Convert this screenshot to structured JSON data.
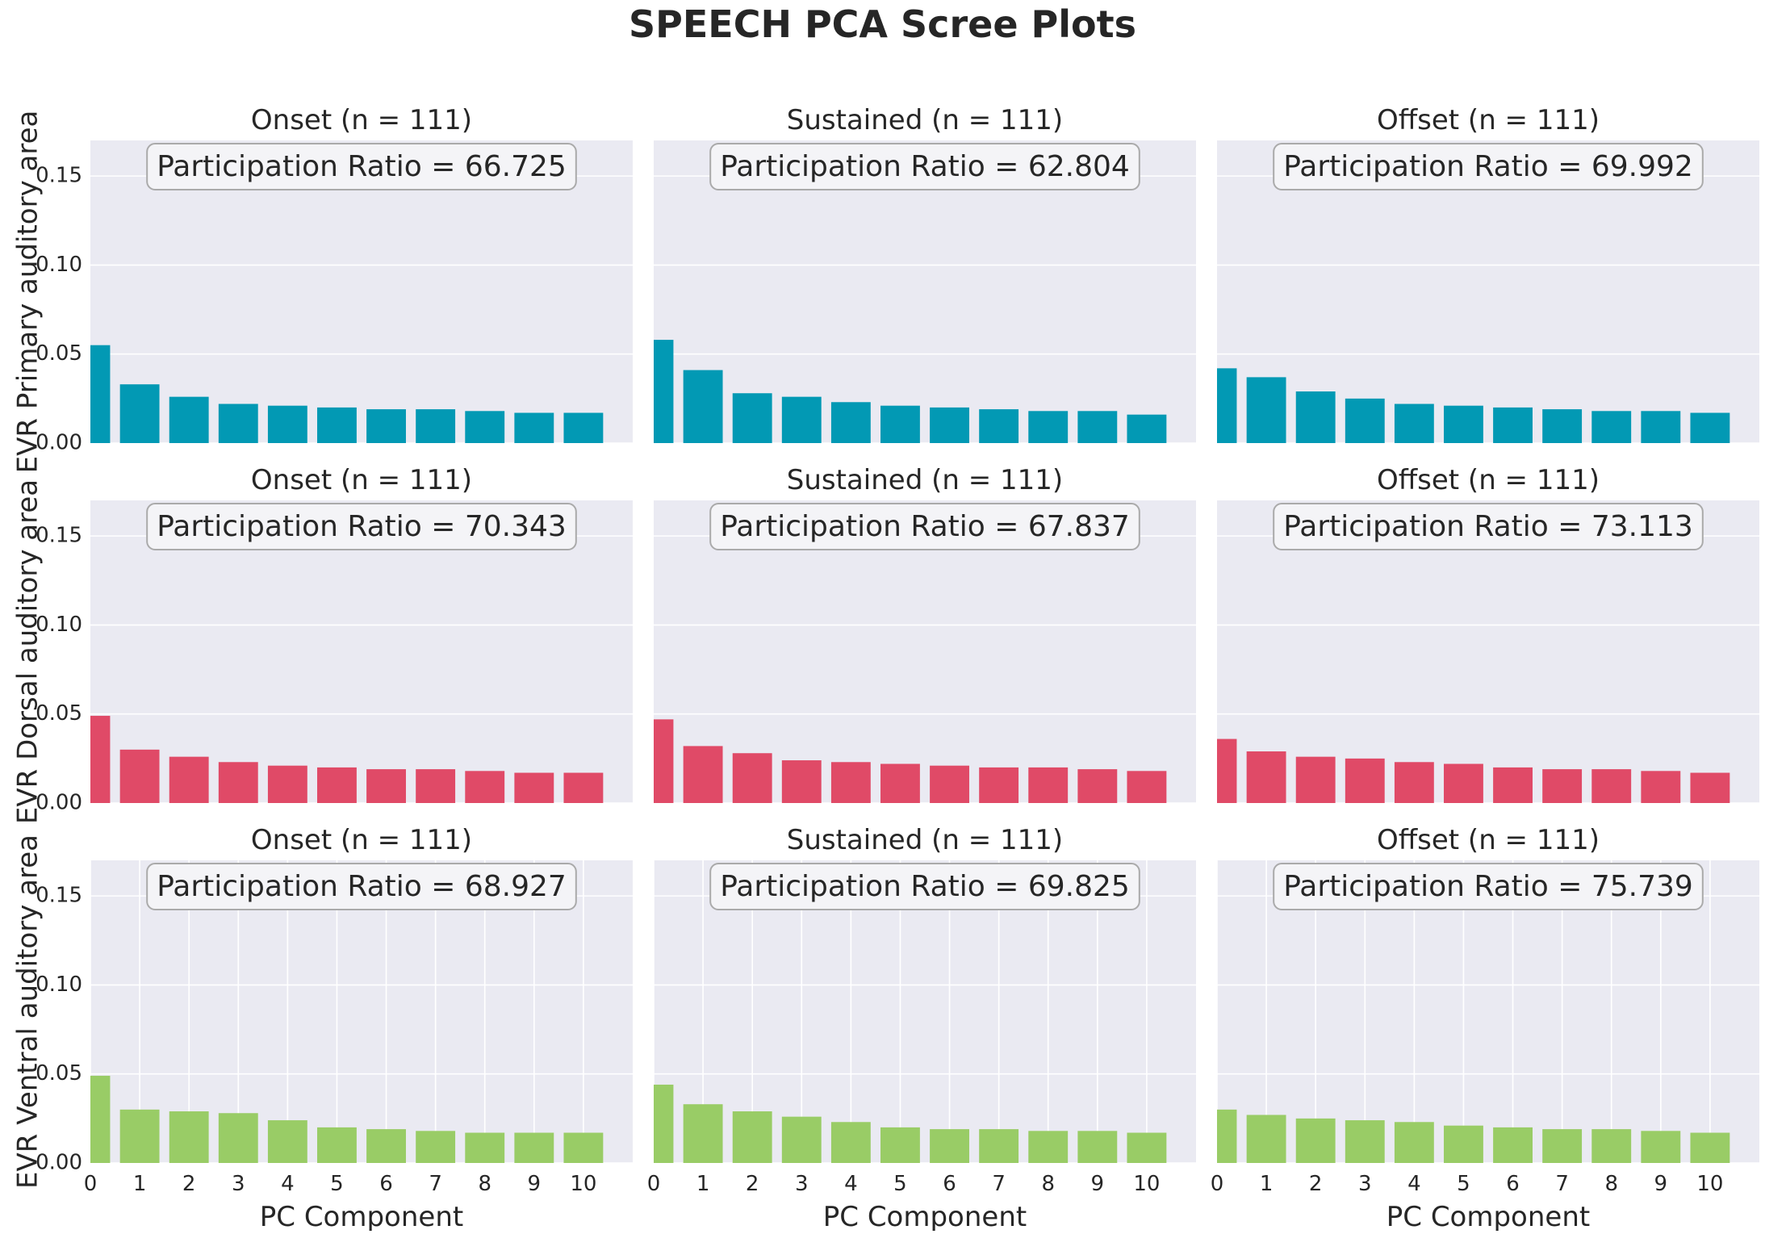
{
  "title": "SPEECH PCA Scree Plots",
  "colors": {
    "background": "#eaeaf2",
    "grid": "#ffffff",
    "text": "#262626",
    "row_colors": [
      "#0299b4",
      "#e04a67",
      "#99cc66"
    ],
    "box_fill": "#f4f4f7",
    "box_border": "#aaaaaa"
  },
  "chart_data": {
    "type": "bar",
    "x": [
      0,
      1,
      2,
      3,
      4,
      5,
      6,
      7,
      8,
      9,
      10
    ],
    "xticks": [
      "0",
      "1",
      "2",
      "3",
      "4",
      "5",
      "6",
      "7",
      "8",
      "9",
      "10"
    ],
    "yticks": [
      "0.00",
      "0.05",
      "0.10",
      "0.15"
    ],
    "ylim": [
      0,
      0.17
    ],
    "xlim": [
      0,
      11
    ],
    "xlabel": "PC Component",
    "grid": true,
    "rows": [
      {
        "ylabel": "EVR Primary auditory area",
        "panels": [
          {
            "title": "Onset (n = 111)",
            "annotation": "Participation Ratio = 66.725",
            "values": [
              0.055,
              0.033,
              0.026,
              0.022,
              0.021,
              0.02,
              0.019,
              0.019,
              0.018,
              0.017,
              0.017
            ]
          },
          {
            "title": "Sustained (n = 111)",
            "annotation": "Participation Ratio = 62.804",
            "values": [
              0.058,
              0.041,
              0.028,
              0.026,
              0.023,
              0.021,
              0.02,
              0.019,
              0.018,
              0.018,
              0.016
            ]
          },
          {
            "title": "Offset (n = 111)",
            "annotation": "Participation Ratio = 69.992",
            "values": [
              0.042,
              0.037,
              0.029,
              0.025,
              0.022,
              0.021,
              0.02,
              0.019,
              0.018,
              0.018,
              0.017
            ]
          }
        ]
      },
      {
        "ylabel": "EVR Dorsal auditory area",
        "panels": [
          {
            "title": "Onset (n = 111)",
            "annotation": "Participation Ratio = 70.343",
            "values": [
              0.049,
              0.03,
              0.026,
              0.023,
              0.021,
              0.02,
              0.019,
              0.019,
              0.018,
              0.017,
              0.017
            ]
          },
          {
            "title": "Sustained (n = 111)",
            "annotation": "Participation Ratio = 67.837",
            "values": [
              0.047,
              0.032,
              0.028,
              0.024,
              0.023,
              0.022,
              0.021,
              0.02,
              0.02,
              0.019,
              0.018
            ]
          },
          {
            "title": "Offset (n = 111)",
            "annotation": "Participation Ratio = 73.113",
            "values": [
              0.036,
              0.029,
              0.026,
              0.025,
              0.023,
              0.022,
              0.02,
              0.019,
              0.019,
              0.018,
              0.017
            ]
          }
        ]
      },
      {
        "ylabel": "EVR Ventral auditory area",
        "panels": [
          {
            "title": "Onset (n = 111)",
            "annotation": "Participation Ratio = 68.927",
            "values": [
              0.049,
              0.03,
              0.029,
              0.028,
              0.024,
              0.02,
              0.019,
              0.018,
              0.017,
              0.017,
              0.017
            ]
          },
          {
            "title": "Sustained (n = 111)",
            "annotation": "Participation Ratio = 69.825",
            "values": [
              0.044,
              0.033,
              0.029,
              0.026,
              0.023,
              0.02,
              0.019,
              0.019,
              0.018,
              0.018,
              0.017
            ]
          },
          {
            "title": "Offset (n = 111)",
            "annotation": "Participation Ratio = 75.739",
            "values": [
              0.03,
              0.027,
              0.025,
              0.024,
              0.023,
              0.021,
              0.02,
              0.019,
              0.019,
              0.018,
              0.017
            ]
          }
        ]
      }
    ]
  }
}
